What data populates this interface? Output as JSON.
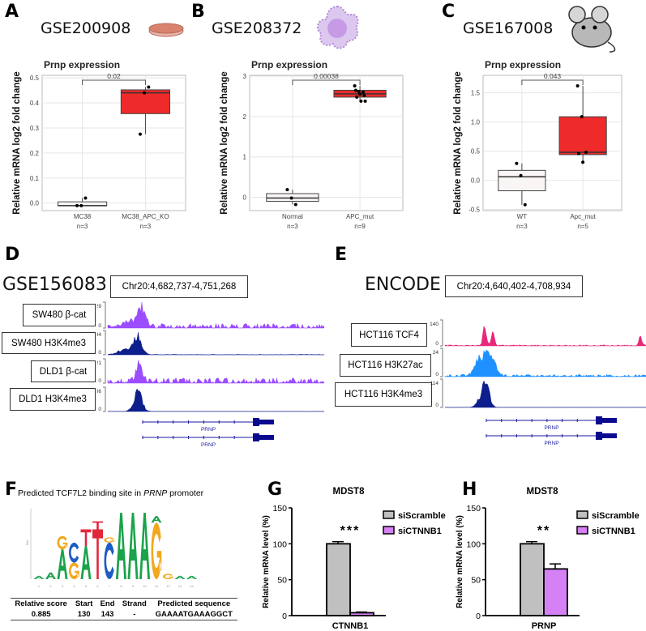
{
  "panels": {
    "A": {
      "label": "A",
      "dataset": "GSE200908",
      "icon": "petri-dish-icon"
    },
    "B": {
      "label": "B",
      "dataset": "GSE208372",
      "icon": "organoid-icon"
    },
    "C": {
      "label": "C",
      "dataset": "GSE167008",
      "icon": "mouse-icon"
    },
    "D": {
      "label": "D",
      "dataset": "GSE156083",
      "region": "Chr20:4,682,737-4,751,268",
      "tracks": [
        {
          "name": "SW480 β-cat",
          "max": "29",
          "min": "0",
          "color": "#9b4dff"
        },
        {
          "name": "SW480 H3K4me3",
          "max": "134",
          "min": "0",
          "color": "#0d1f8c"
        },
        {
          "name": "DLD1 β-cat",
          "max": "21",
          "min": "0",
          "color": "#9b4dff"
        },
        {
          "name": "DLD1 H3K4me3",
          "max": "236",
          "min": "0",
          "color": "#0d1f8c"
        }
      ],
      "genes": [
        "PRNP",
        "PRNP"
      ]
    },
    "E": {
      "label": "E",
      "dataset": "ENCODE",
      "region": "Chr20:4,640,402-4,708,934",
      "tracks": [
        {
          "name": "HCT116 TCF4",
          "max": "140",
          "min": "0",
          "color": "#e8287a"
        },
        {
          "name": "HCT116 H3K27ac",
          "max": "24",
          "min": "0",
          "color": "#1e90ff"
        },
        {
          "name": "HCT116 H3K4me3",
          "max": "114",
          "min": "0",
          "color": "#0d1f8c"
        }
      ],
      "genes": [
        "PRNP",
        "PRNP"
      ]
    },
    "F": {
      "label": "F",
      "title_pre": "Predicted TCF7L2 binding site in ",
      "title_em": "PRNP",
      "title_post": " promoter",
      "logo_letters": [
        "A",
        "G",
        "C",
        "T",
        "A",
        "T",
        "T",
        "C",
        "G",
        "A",
        "A",
        "A",
        "G",
        "G"
      ],
      "table": {
        "headers": [
          "Relative score",
          "Start",
          "End",
          "Strand",
          "Predicted sequence"
        ],
        "row": [
          "0.885",
          "130",
          "143",
          "-",
          "GAAAATGAAAGGCT"
        ]
      }
    },
    "G": {
      "label": "G"
    },
    "H": {
      "label": "H"
    }
  },
  "chart_data": [
    {
      "type": "box",
      "title": "Prnp expression",
      "ylabel": "Relative mRNA log2 fold change",
      "ylim": [
        -0.03,
        0.51
      ],
      "yticks": [
        "0.0",
        "0.1",
        "0.2",
        "0.3",
        "0.4",
        "0.5"
      ],
      "ytickvals": [
        0,
        0.1,
        0.2,
        0.3,
        0.4,
        0.5
      ],
      "pvalue": "0.02",
      "groups": [
        {
          "name": "MC38",
          "n": "n=3",
          "color": "#fbf6f6",
          "q1": -0.01,
          "median": -0.01,
          "q3": 0.005,
          "lo": -0.01,
          "hi": 0.02,
          "points": [
            -0.01,
            -0.01,
            0.02
          ]
        },
        {
          "name": "MC38_APC_KO",
          "n": "n=3",
          "color": "#ee2a2a",
          "q1": 0.357,
          "median": 0.44,
          "q3": 0.452,
          "lo": 0.275,
          "hi": 0.463,
          "points": [
            0.275,
            0.44,
            0.463
          ]
        }
      ]
    },
    {
      "type": "box",
      "title": "Prnp expression",
      "ylabel": "Relative mRNA log2 fold change",
      "ylim": [
        -0.33,
        3.02
      ],
      "yticks": [
        "0",
        "1",
        "2",
        "3"
      ],
      "ytickvals": [
        0,
        1,
        2,
        3
      ],
      "pvalue": "0.00038",
      "groups": [
        {
          "name": "Normal",
          "n": "n=3",
          "color": "#fbf6f6",
          "q1": -0.1,
          "median": -0.02,
          "q3": 0.09,
          "lo": -0.18,
          "hi": 0.19,
          "points": [
            0.19,
            -0.02,
            -0.18
          ]
        },
        {
          "name": "APC_mut",
          "n": "n=9",
          "color": "#ee2a2a",
          "q1": 2.48,
          "median": 2.56,
          "q3": 2.65,
          "lo": 2.38,
          "hi": 2.76,
          "points": [
            2.76,
            2.62,
            2.6,
            2.65,
            2.55,
            2.52,
            2.48,
            2.38,
            2.38
          ]
        }
      ]
    },
    {
      "type": "box",
      "title": "Prnp expression",
      "ylabel": "Relative mRNA log2 fold change",
      "ylim": [
        -0.52,
        1.8
      ],
      "yticks": [
        "-0.5",
        "0.0",
        "0.5",
        "1.0",
        "1.5"
      ],
      "ytickvals": [
        -0.5,
        0,
        0.5,
        1,
        1.5
      ],
      "pvalue": "0.043",
      "groups": [
        {
          "name": "WT",
          "n": "n=3",
          "color": "#fbf6f6",
          "q1": -0.18,
          "median": 0.06,
          "q3": 0.17,
          "lo": -0.42,
          "hi": 0.29,
          "points": [
            0.29,
            0.08,
            -0.42
          ]
        },
        {
          "name": "Apc_mut",
          "n": "n=5",
          "color": "#ee2a2a",
          "q1": 0.44,
          "median": 0.48,
          "q3": 1.09,
          "lo": 0.31,
          "hi": 1.62,
          "points": [
            1.62,
            1.09,
            0.48,
            0.46,
            0.31
          ]
        }
      ]
    },
    {
      "type": "bar",
      "title": "MDST8",
      "ylabel": "Relative mRNA level (%)",
      "xlabel": "CTNNB1",
      "ylim": [
        0,
        150
      ],
      "yticks": [
        "0",
        "50",
        "100",
        "150"
      ],
      "ytickvals": [
        0,
        50,
        100,
        150
      ],
      "significance": "***",
      "series": [
        {
          "name": "siScramble",
          "color": "#c0c0c0",
          "value": 100,
          "error": 3
        },
        {
          "name": "siCTNNB1",
          "color": "#d580f5",
          "value": 4,
          "error": 1
        }
      ]
    },
    {
      "type": "bar",
      "title": "MDST8",
      "ylabel": "Relative mRNA level (%)",
      "xlabel": "PRNP",
      "ylim": [
        0,
        150
      ],
      "yticks": [
        "0",
        "50",
        "100",
        "150"
      ],
      "ytickvals": [
        0,
        50,
        100,
        150
      ],
      "significance": "**",
      "series": [
        {
          "name": "siScramble",
          "color": "#c0c0c0",
          "value": 100,
          "error": 3
        },
        {
          "name": "siCTNNB1",
          "color": "#d580f5",
          "value": 65,
          "error": 7
        }
      ]
    }
  ]
}
